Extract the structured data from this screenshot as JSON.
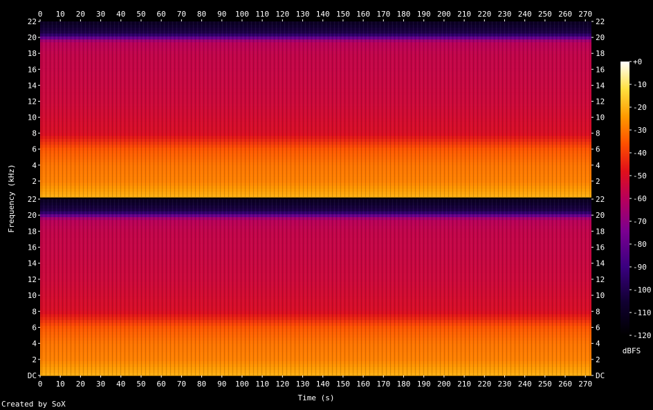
{
  "chart_data": {
    "type": "heatmap",
    "title": "",
    "xlabel": "Time (s)",
    "ylabel": "Frequency (kHz)",
    "colorbar_label": "dBFS",
    "xlim": [
      0,
      273
    ],
    "x_ticks": [
      "0",
      "10",
      "20",
      "30",
      "40",
      "50",
      "60",
      "70",
      "80",
      "90",
      "100",
      "110",
      "120",
      "130",
      "140",
      "150",
      "160",
      "170",
      "180",
      "190",
      "200",
      "210",
      "220",
      "230",
      "240",
      "250",
      "260",
      "270"
    ],
    "channels": [
      {
        "y_ticks_left": [
          "22",
          "20",
          "18",
          "16",
          "14",
          "12",
          "10",
          "8",
          "6",
          "4",
          "2"
        ],
        "y_ticks_right": [
          "22",
          "20",
          "18",
          "16",
          "14",
          "12",
          "10",
          "8",
          "6",
          "4",
          "2"
        ]
      },
      {
        "y_ticks_left": [
          "22",
          "20",
          "18",
          "16",
          "14",
          "12",
          "10",
          "8",
          "6",
          "4",
          "2",
          "DC"
        ],
        "y_ticks_right": [
          "22",
          "20",
          "18",
          "16",
          "14",
          "12",
          "10",
          "8",
          "6",
          "4",
          "2",
          "DC"
        ]
      }
    ],
    "ylim_khz": [
      0,
      22
    ],
    "colorbar_ticks": [
      "+0",
      "-10",
      "-20",
      "-30",
      "-40",
      "-50",
      "-60",
      "-70",
      "-80",
      "-90",
      "-100",
      "-110",
      "-120"
    ],
    "zlim_dbfs": [
      -120,
      0
    ],
    "energy_profile": {
      "freq_khz": [
        0,
        2,
        4,
        6,
        8,
        10,
        12,
        14,
        16,
        18,
        19.5,
        20.5,
        22
      ],
      "level_dbfs": [
        -20,
        -28,
        -30,
        -35,
        -50,
        -52,
        -54,
        -55,
        -56,
        -57,
        -60,
        -100,
        -110
      ]
    }
  },
  "footer": {
    "credit": "Created by SoX"
  }
}
